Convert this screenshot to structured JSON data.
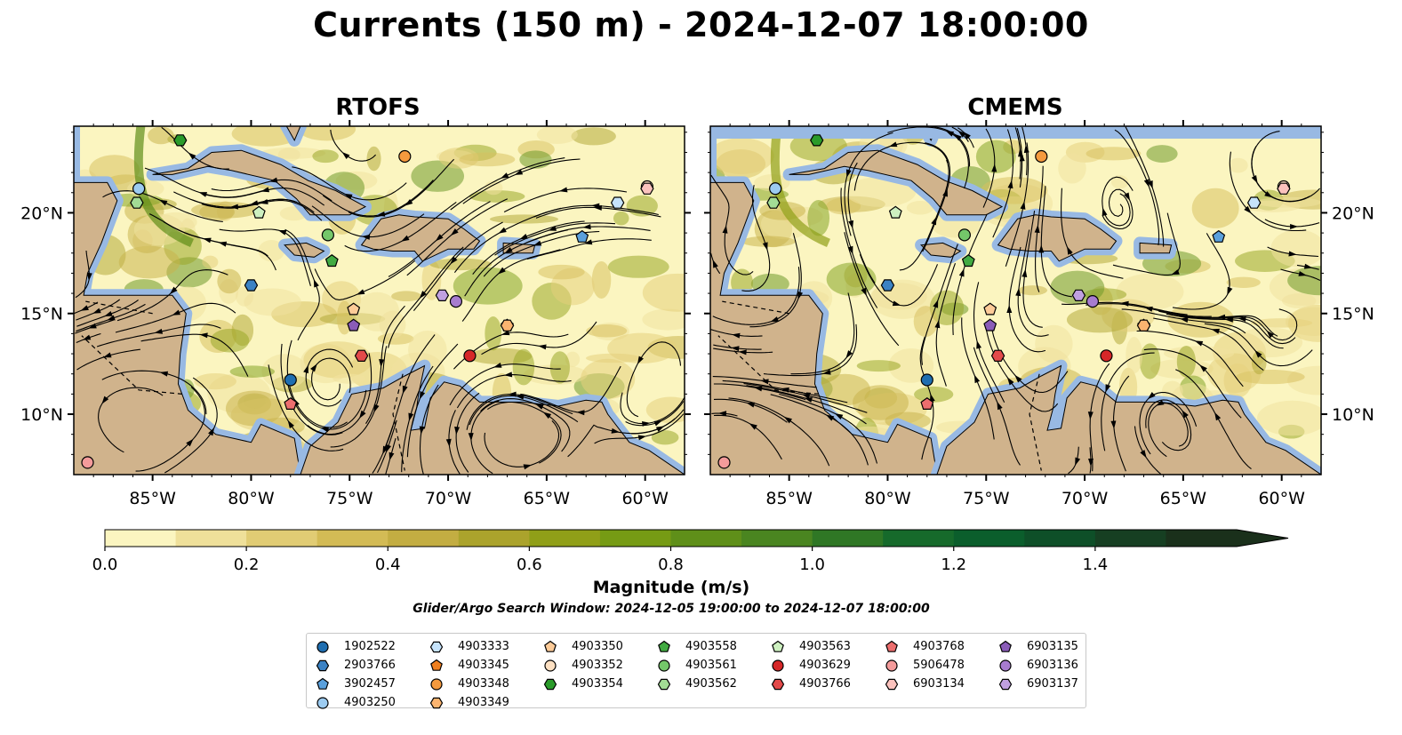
{
  "title": "Currents (150 m) - 2024-12-07 18:00:00",
  "panels": [
    {
      "title": "RTOFS"
    },
    {
      "title": "CMEMS"
    }
  ],
  "colorbar": {
    "label": "Magnitude (m/s)",
    "ticks": [
      "0.0",
      "0.2",
      "0.4",
      "0.6",
      "0.8",
      "1.0",
      "1.2",
      "1.4"
    ],
    "range": [
      0,
      1.6
    ],
    "step": 0.1,
    "extend": "max",
    "colors": [
      "#fbf5c0",
      "#efe09a",
      "#e1cc74",
      "#d3bb55",
      "#c3ad42",
      "#aba32c",
      "#909f18",
      "#769b14",
      "#5f8f19",
      "#4a8520",
      "#2f7725",
      "#166a2b",
      "#0b5e2c",
      "#0e4f28",
      "#163f22",
      "#1a301b"
    ]
  },
  "window_note": "Glider/Argo Search Window: 2024-12-05 19:00:00 to 2024-12-07 18:00:00",
  "legend": {
    "columns": 7,
    "placement": "bottom-center",
    "items": [
      {
        "label": "1902522",
        "marker": "circle",
        "color": "#1f6eb0"
      },
      {
        "label": "2903766",
        "marker": "hexagon",
        "color": "#3b82c4"
      },
      {
        "label": "3902457",
        "marker": "pentagon",
        "color": "#5aa0dc"
      },
      {
        "label": "4903250",
        "marker": "circle",
        "color": "#9ccbf0"
      },
      {
        "label": "4903333",
        "marker": "hexagon",
        "color": "#c6e3fb"
      },
      {
        "label": "4903345",
        "marker": "pentagon",
        "color": "#f07f1e"
      },
      {
        "label": "4903348",
        "marker": "circle",
        "color": "#f59a3e"
      },
      {
        "label": "4903349",
        "marker": "hexagon",
        "color": "#fbb470"
      },
      {
        "label": "4903350",
        "marker": "pentagon",
        "color": "#fdcb98"
      },
      {
        "label": "4903352",
        "marker": "circle",
        "color": "#fde0c2"
      },
      {
        "label": "4903354",
        "marker": "hexagon",
        "color": "#2a9b2a"
      },
      {
        "label": "4903558",
        "marker": "pentagon",
        "color": "#42ab42"
      },
      {
        "label": "4903561",
        "marker": "circle",
        "color": "#74c76a"
      },
      {
        "label": "4903562",
        "marker": "hexagon",
        "color": "#a3dc95"
      },
      {
        "label": "4903563",
        "marker": "pentagon",
        "color": "#cdf0c0"
      },
      {
        "label": "4903629",
        "marker": "circle",
        "color": "#d62728"
      },
      {
        "label": "4903766",
        "marker": "hexagon",
        "color": "#e34a4a"
      },
      {
        "label": "4903768",
        "marker": "pentagon",
        "color": "#ec6e6e"
      },
      {
        "label": "5906478",
        "marker": "circle",
        "color": "#f49b9b"
      },
      {
        "label": "6903134",
        "marker": "hexagon",
        "color": "#fbc2bd"
      },
      {
        "label": "6903135",
        "marker": "pentagon",
        "color": "#8a5cb8"
      },
      {
        "label": "6903136",
        "marker": "circle",
        "color": "#a77ccf"
      },
      {
        "label": "6903137",
        "marker": "hexagon",
        "color": "#c0a0e0"
      }
    ]
  },
  "chart_data": {
    "type": "map",
    "variable": "current magnitude (m/s) with streamlines",
    "extent": {
      "lon": [
        -89,
        -58
      ],
      "lat": [
        7,
        24.3
      ]
    },
    "xticks": [
      {
        "lon": -85,
        "label": "85°W"
      },
      {
        "lon": -80,
        "label": "80°W"
      },
      {
        "lon": -75,
        "label": "75°W"
      },
      {
        "lon": -70,
        "label": "70°W"
      },
      {
        "lon": -65,
        "label": "65°W"
      },
      {
        "lon": -60,
        "label": "60°W"
      }
    ],
    "yticks": [
      {
        "lat": 10,
        "label": "10°N"
      },
      {
        "lat": 15,
        "label": "15°N"
      },
      {
        "lat": 20,
        "label": "20°N"
      }
    ],
    "profilers": [
      {
        "id": "1902522",
        "lon": -78.0,
        "lat": 11.7
      },
      {
        "id": "2903766",
        "lon": -80.0,
        "lat": 16.4
      },
      {
        "id": "3902457",
        "lon": -63.2,
        "lat": 18.8
      },
      {
        "id": "4903250",
        "lon": -85.7,
        "lat": 21.2
      },
      {
        "id": "4903333",
        "lon": -61.4,
        "lat": 20.5
      },
      {
        "id": "4903345",
        "lon": -67.0,
        "lat": 14.4
      },
      {
        "id": "4903348",
        "lon": -72.2,
        "lat": 22.8
      },
      {
        "id": "4903349",
        "lon": -67.0,
        "lat": 14.4
      },
      {
        "id": "4903350",
        "lon": -74.8,
        "lat": 15.2
      },
      {
        "id": "4903352",
        "lon": -59.9,
        "lat": 21.3
      },
      {
        "id": "4903354",
        "lon": -83.6,
        "lat": 23.6
      },
      {
        "id": "4903558",
        "lon": -75.9,
        "lat": 17.6
      },
      {
        "id": "4903561",
        "lon": -76.1,
        "lat": 18.9
      },
      {
        "id": "4903562",
        "lon": -85.8,
        "lat": 20.5
      },
      {
        "id": "4903563",
        "lon": -79.6,
        "lat": 20.0
      },
      {
        "id": "4903629",
        "lon": -68.9,
        "lat": 12.9
      },
      {
        "id": "4903766",
        "lon": -74.4,
        "lat": 12.9
      },
      {
        "id": "4903768",
        "lon": -78.0,
        "lat": 10.5
      },
      {
        "id": "5906478",
        "lon": -88.3,
        "lat": 7.6
      },
      {
        "id": "6903134",
        "lon": -59.9,
        "lat": 21.2
      },
      {
        "id": "6903135",
        "lon": -74.8,
        "lat": 14.4
      },
      {
        "id": "6903136",
        "lon": -69.6,
        "lat": 15.6
      },
      {
        "id": "6903137",
        "lon": -70.3,
        "lat": 15.9
      }
    ]
  }
}
